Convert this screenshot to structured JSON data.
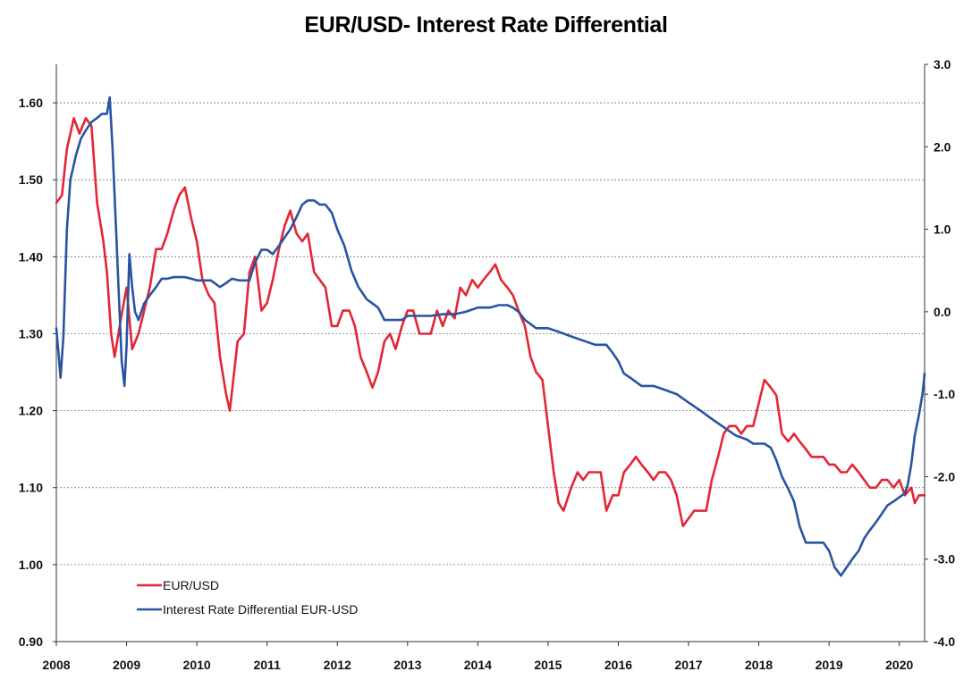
{
  "chart_data": {
    "type": "line",
    "title": "EUR/USD- Interest Rate Differential",
    "xlabel": "",
    "ylabel": "",
    "x_ticks": [
      "2008",
      "2009",
      "2010",
      "2011",
      "2012",
      "2013",
      "2014",
      "2015",
      "2016",
      "2017",
      "2018",
      "2019",
      "2020"
    ],
    "xlim": [
      2008.0,
      2020.36
    ],
    "y_left": {
      "lim": [
        0.9,
        1.65
      ],
      "ticks": [
        "0.90",
        "1.00",
        "1.10",
        "1.20",
        "1.30",
        "1.40",
        "1.50",
        "1.60"
      ]
    },
    "y_right": {
      "lim": [
        -4.0,
        3.0
      ],
      "ticks": [
        "-4.0",
        "-3.0",
        "-2.0",
        "-1.0",
        "0.0",
        "1.0",
        "2.0",
        "3.0"
      ]
    },
    "grid": "horizontal dashed",
    "legend_position": "bottom-left",
    "series": [
      {
        "name": "EUR/USD",
        "axis": "left",
        "color": "#e32636",
        "x": [
          2008.0,
          2008.08,
          2008.15,
          2008.25,
          2008.33,
          2008.42,
          2008.5,
          2008.58,
          2008.67,
          2008.72,
          2008.78,
          2008.83,
          2008.92,
          2009.0,
          2009.08,
          2009.17,
          2009.25,
          2009.33,
          2009.42,
          2009.5,
          2009.58,
          2009.67,
          2009.75,
          2009.83,
          2009.92,
          2010.0,
          2010.08,
          2010.17,
          2010.25,
          2010.33,
          2010.42,
          2010.47,
          2010.58,
          2010.67,
          2010.75,
          2010.83,
          2010.92,
          2011.0,
          2011.08,
          2011.17,
          2011.25,
          2011.33,
          2011.42,
          2011.5,
          2011.58,
          2011.67,
          2011.75,
          2011.83,
          2011.92,
          2012.0,
          2012.08,
          2012.17,
          2012.25,
          2012.33,
          2012.42,
          2012.5,
          2012.58,
          2012.67,
          2012.75,
          2012.83,
          2012.92,
          2013.0,
          2013.08,
          2013.17,
          2013.25,
          2013.33,
          2013.42,
          2013.5,
          2013.58,
          2013.67,
          2013.75,
          2013.83,
          2013.92,
          2014.0,
          2014.08,
          2014.17,
          2014.25,
          2014.33,
          2014.42,
          2014.5,
          2014.58,
          2014.67,
          2014.75,
          2014.83,
          2014.92,
          2015.0,
          2015.08,
          2015.15,
          2015.22,
          2015.33,
          2015.42,
          2015.5,
          2015.58,
          2015.67,
          2015.75,
          2015.83,
          2015.92,
          2016.0,
          2016.08,
          2016.17,
          2016.25,
          2016.33,
          2016.42,
          2016.5,
          2016.58,
          2016.67,
          2016.75,
          2016.83,
          2016.92,
          2017.0,
          2017.08,
          2017.17,
          2017.25,
          2017.33,
          2017.42,
          2017.5,
          2017.58,
          2017.67,
          2017.75,
          2017.83,
          2017.92,
          2018.0,
          2018.08,
          2018.17,
          2018.25,
          2018.33,
          2018.42,
          2018.5,
          2018.58,
          2018.67,
          2018.75,
          2018.83,
          2018.92,
          2019.0,
          2019.08,
          2019.17,
          2019.25,
          2019.33,
          2019.42,
          2019.5,
          2019.58,
          2019.67,
          2019.75,
          2019.83,
          2019.92,
          2020.0,
          2020.08,
          2020.17,
          2020.22,
          2020.28,
          2020.36
        ],
        "y": [
          1.47,
          1.48,
          1.54,
          1.58,
          1.56,
          1.58,
          1.57,
          1.47,
          1.42,
          1.38,
          1.3,
          1.27,
          1.32,
          1.36,
          1.28,
          1.3,
          1.33,
          1.36,
          1.41,
          1.41,
          1.43,
          1.46,
          1.48,
          1.49,
          1.45,
          1.42,
          1.37,
          1.35,
          1.34,
          1.27,
          1.22,
          1.2,
          1.29,
          1.3,
          1.38,
          1.4,
          1.33,
          1.34,
          1.37,
          1.41,
          1.44,
          1.46,
          1.43,
          1.42,
          1.43,
          1.38,
          1.37,
          1.36,
          1.31,
          1.31,
          1.33,
          1.33,
          1.31,
          1.27,
          1.25,
          1.23,
          1.25,
          1.29,
          1.3,
          1.28,
          1.31,
          1.33,
          1.33,
          1.3,
          1.3,
          1.3,
          1.33,
          1.31,
          1.33,
          1.32,
          1.36,
          1.35,
          1.37,
          1.36,
          1.37,
          1.38,
          1.39,
          1.37,
          1.36,
          1.35,
          1.33,
          1.31,
          1.27,
          1.25,
          1.24,
          1.18,
          1.12,
          1.08,
          1.07,
          1.1,
          1.12,
          1.11,
          1.12,
          1.12,
          1.12,
          1.07,
          1.09,
          1.09,
          1.12,
          1.13,
          1.14,
          1.13,
          1.12,
          1.11,
          1.12,
          1.12,
          1.11,
          1.09,
          1.05,
          1.06,
          1.07,
          1.07,
          1.07,
          1.11,
          1.14,
          1.17,
          1.18,
          1.18,
          1.17,
          1.18,
          1.18,
          1.21,
          1.24,
          1.23,
          1.22,
          1.17,
          1.16,
          1.17,
          1.16,
          1.15,
          1.14,
          1.14,
          1.14,
          1.13,
          1.13,
          1.12,
          1.12,
          1.13,
          1.12,
          1.11,
          1.1,
          1.1,
          1.11,
          1.11,
          1.1,
          1.11,
          1.09,
          1.1,
          1.08,
          1.09,
          1.09
        ]
      },
      {
        "name": "Interest Rate Differential EUR-USD",
        "axis": "right",
        "color": "#2a54a0",
        "x": [
          2008.0,
          2008.03,
          2008.06,
          2008.1,
          2008.15,
          2008.2,
          2008.28,
          2008.35,
          2008.42,
          2008.5,
          2008.58,
          2008.65,
          2008.72,
          2008.76,
          2008.8,
          2008.85,
          2008.9,
          2008.93,
          2008.97,
          2009.0,
          2009.04,
          2009.08,
          2009.12,
          2009.17,
          2009.25,
          2009.33,
          2009.42,
          2009.5,
          2009.58,
          2009.67,
          2009.75,
          2009.83,
          2009.92,
          2010.0,
          2010.1,
          2010.2,
          2010.33,
          2010.42,
          2010.5,
          2010.6,
          2010.75,
          2010.83,
          2010.92,
          2011.0,
          2011.08,
          2011.17,
          2011.25,
          2011.33,
          2011.42,
          2011.5,
          2011.58,
          2011.67,
          2011.75,
          2011.83,
          2011.92,
          2012.0,
          2012.1,
          2012.2,
          2012.3,
          2012.42,
          2012.58,
          2012.67,
          2012.75,
          2012.83,
          2012.92,
          2013.0,
          2013.17,
          2013.33,
          2013.5,
          2013.67,
          2013.83,
          2014.0,
          2014.17,
          2014.3,
          2014.42,
          2014.5,
          2014.58,
          2014.67,
          2014.83,
          2015.0,
          2015.17,
          2015.33,
          2015.5,
          2015.67,
          2015.83,
          2015.92,
          2016.0,
          2016.08,
          2016.17,
          2016.25,
          2016.33,
          2016.5,
          2016.67,
          2016.83,
          2017.0,
          2017.17,
          2017.33,
          2017.5,
          2017.67,
          2017.83,
          2017.92,
          2018.0,
          2018.08,
          2018.17,
          2018.25,
          2018.33,
          2018.42,
          2018.5,
          2018.58,
          2018.67,
          2018.75,
          2018.83,
          2018.92,
          2019.0,
          2019.08,
          2019.17,
          2019.25,
          2019.33,
          2019.42,
          2019.5,
          2019.58,
          2019.67,
          2019.75,
          2019.83,
          2019.92,
          2020.0,
          2020.08,
          2020.12,
          2020.17,
          2020.22,
          2020.28,
          2020.33,
          2020.36
        ],
        "y": [
          -0.2,
          -0.5,
          -0.8,
          -0.3,
          1.0,
          1.6,
          1.9,
          2.1,
          2.2,
          2.3,
          2.35,
          2.4,
          2.4,
          2.6,
          2.0,
          1.0,
          0.0,
          -0.6,
          -0.9,
          -0.4,
          0.7,
          0.3,
          0.0,
          -0.1,
          0.1,
          0.2,
          0.3,
          0.4,
          0.4,
          0.42,
          0.42,
          0.42,
          0.4,
          0.38,
          0.38,
          0.38,
          0.3,
          0.35,
          0.4,
          0.38,
          0.38,
          0.6,
          0.75,
          0.75,
          0.7,
          0.8,
          0.9,
          1.0,
          1.15,
          1.3,
          1.35,
          1.35,
          1.3,
          1.3,
          1.2,
          1.0,
          0.8,
          0.5,
          0.3,
          0.15,
          0.05,
          -0.1,
          -0.1,
          -0.1,
          -0.1,
          -0.05,
          -0.05,
          -0.05,
          -0.03,
          -0.03,
          0.0,
          0.05,
          0.05,
          0.08,
          0.08,
          0.05,
          0.0,
          -0.1,
          -0.2,
          -0.2,
          -0.25,
          -0.3,
          -0.35,
          -0.4,
          -0.4,
          -0.5,
          -0.6,
          -0.75,
          -0.8,
          -0.85,
          -0.9,
          -0.9,
          -0.95,
          -1.0,
          -1.1,
          -1.2,
          -1.3,
          -1.4,
          -1.5,
          -1.55,
          -1.6,
          -1.6,
          -1.6,
          -1.65,
          -1.8,
          -2.0,
          -2.15,
          -2.3,
          -2.6,
          -2.8,
          -2.8,
          -2.8,
          -2.8,
          -2.9,
          -3.1,
          -3.2,
          -3.1,
          -3.0,
          -2.9,
          -2.75,
          -2.65,
          -2.55,
          -2.45,
          -2.35,
          -2.3,
          -2.25,
          -2.2,
          -2.1,
          -1.85,
          -1.5,
          -1.25,
          -1.0,
          -0.75
        ]
      }
    ]
  }
}
